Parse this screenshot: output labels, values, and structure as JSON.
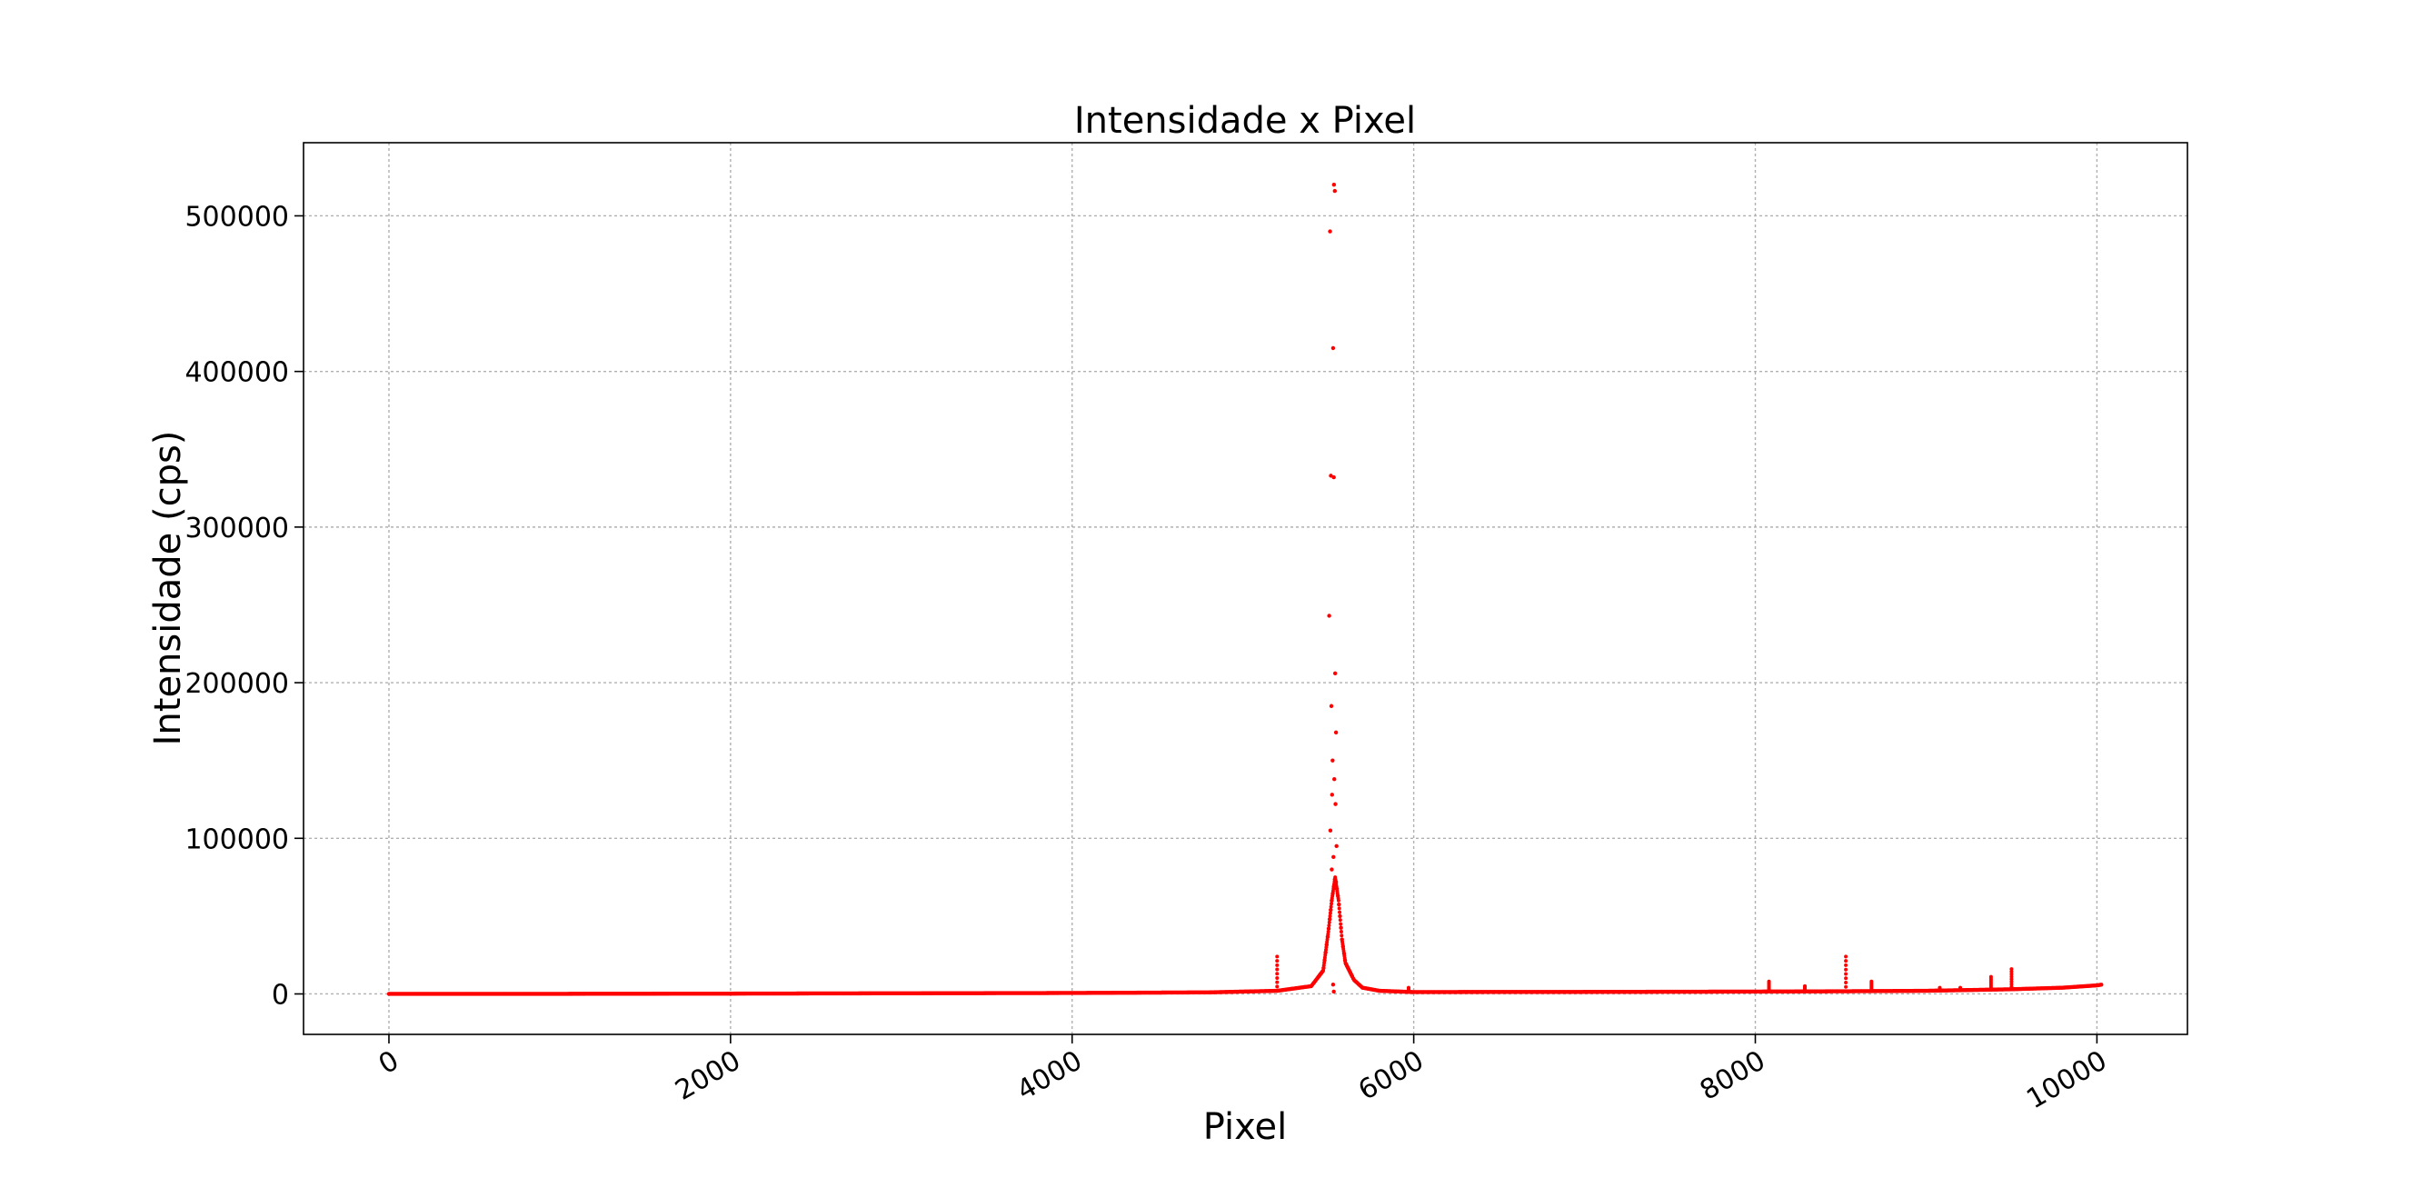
{
  "chart_data": {
    "type": "scatter",
    "title": "Intensidade x Pixel",
    "xlabel": "Pixel",
    "ylabel": "Intensidade (cps)",
    "xlim": [
      -500,
      10530
    ],
    "ylim": [
      -26000,
      547000
    ],
    "xticks": [
      0,
      2000,
      4000,
      6000,
      8000,
      10000
    ],
    "xtick_labels": [
      "0",
      "2000",
      "4000",
      "6000",
      "8000",
      "10000"
    ],
    "yticks": [
      0,
      100000,
      200000,
      300000,
      400000,
      500000
    ],
    "ytick_labels": [
      "0",
      "100000",
      "200000",
      "300000",
      "400000",
      "500000"
    ],
    "grid": true,
    "marker_color": "#ff0000",
    "baseline": [
      [
        0,
        0
      ],
      [
        1000,
        50
      ],
      [
        2000,
        200
      ],
      [
        3000,
        400
      ],
      [
        4000,
        600
      ],
      [
        4800,
        1000
      ],
      [
        5200,
        2000
      ],
      [
        5400,
        5000
      ],
      [
        5470,
        15000
      ],
      [
        5500,
        40000
      ],
      [
        5520,
        60000
      ],
      [
        5540,
        75000
      ],
      [
        5560,
        60000
      ],
      [
        5580,
        35000
      ],
      [
        5600,
        20000
      ],
      [
        5650,
        9000
      ],
      [
        5700,
        4000
      ],
      [
        5800,
        2000
      ],
      [
        6000,
        1200
      ],
      [
        7000,
        1300
      ],
      [
        8000,
        1500
      ],
      [
        8500,
        1700
      ],
      [
        9000,
        2000
      ],
      [
        9500,
        3000
      ],
      [
        9800,
        4000
      ],
      [
        10000,
        5500
      ],
      [
        10030,
        6000
      ]
    ],
    "peak_points": [
      [
        5533,
        520000
      ],
      [
        5538,
        516000
      ],
      [
        5510,
        490000
      ],
      [
        5528,
        415000
      ],
      [
        5515,
        333000
      ],
      [
        5532,
        332000
      ],
      [
        5505,
        243000
      ],
      [
        5540,
        206000
      ],
      [
        5518,
        185000
      ],
      [
        5545,
        168000
      ],
      [
        5525,
        150000
      ],
      [
        5535,
        138000
      ],
      [
        5522,
        128000
      ],
      [
        5542,
        122000
      ],
      [
        5512,
        105000
      ],
      [
        5548,
        95000
      ],
      [
        5530,
        88000
      ],
      [
        5520,
        80000
      ],
      [
        5545,
        72000
      ],
      [
        5528,
        6000
      ],
      [
        5532,
        1500
      ]
    ],
    "minor_peaks": [
      [
        5200,
        24000
      ],
      [
        5970,
        4000
      ],
      [
        8080,
        8000
      ],
      [
        8290,
        5000
      ],
      [
        8530,
        24000
      ],
      [
        8680,
        8000
      ],
      [
        9080,
        4000
      ],
      [
        9200,
        4000
      ],
      [
        9380,
        11000
      ],
      [
        9500,
        16000
      ]
    ]
  }
}
